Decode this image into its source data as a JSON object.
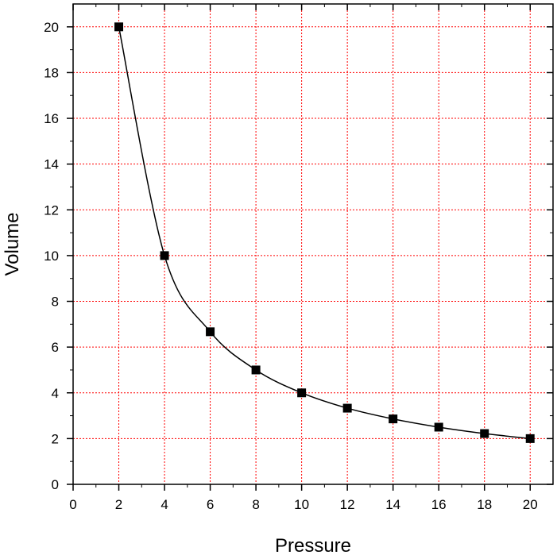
{
  "chart_data": {
    "type": "line",
    "title": "",
    "xlabel": "Pressure",
    "ylabel": "Volume",
    "xlim": [
      0,
      21
    ],
    "ylim": [
      0,
      21
    ],
    "xticks": [
      0,
      2,
      4,
      6,
      8,
      10,
      12,
      14,
      16,
      18,
      20
    ],
    "yticks": [
      0,
      2,
      4,
      6,
      8,
      10,
      12,
      14,
      16,
      18,
      20
    ],
    "grid": true,
    "grid_color": "#ff0000",
    "line_color": "#000000",
    "marker": "square",
    "legend": "none",
    "series": [
      {
        "x": [
          2,
          4,
          6,
          8,
          10,
          12,
          14,
          16,
          18,
          20
        ],
        "values": [
          20,
          10,
          6.67,
          5,
          4,
          3.33,
          2.86,
          2.5,
          2.22,
          2
        ]
      }
    ]
  }
}
